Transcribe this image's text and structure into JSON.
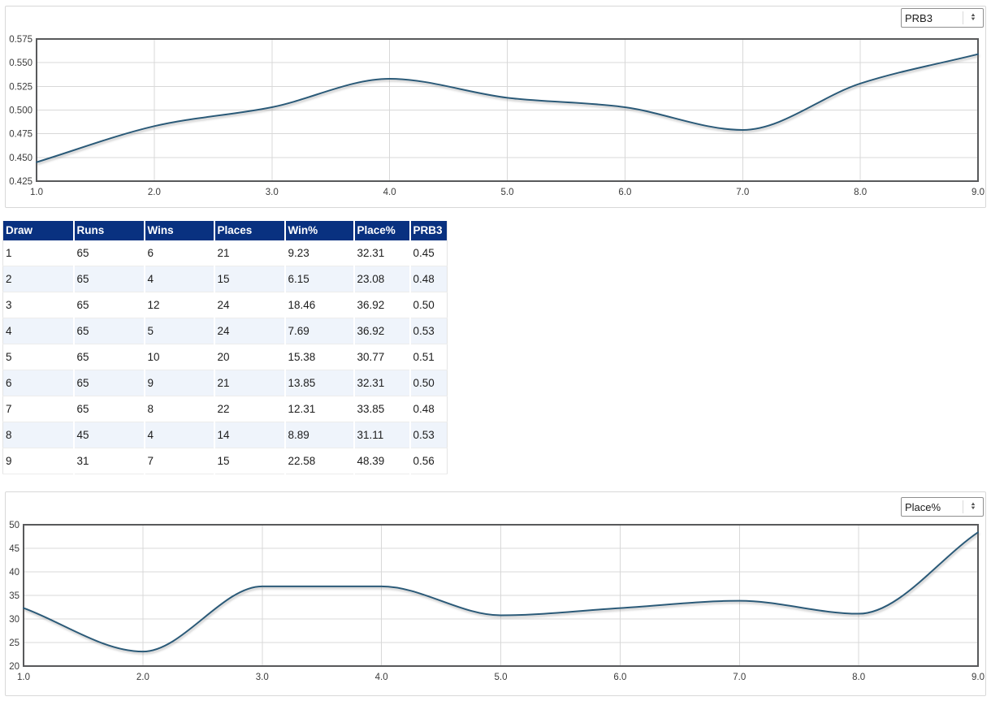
{
  "chart_data": [
    {
      "type": "line",
      "selector_value": "PRB3",
      "x": [
        1,
        2,
        3,
        4,
        5,
        6,
        7,
        8,
        9
      ],
      "series": [
        {
          "name": "PRB3",
          "values": [
            0.445,
            0.483,
            0.503,
            0.533,
            0.513,
            0.503,
            0.479,
            0.528,
            0.559
          ]
        }
      ],
      "title": "",
      "xlabel": "",
      "ylabel": "",
      "xlim": [
        1,
        9
      ],
      "ylim": [
        0.425,
        0.575
      ],
      "x_tick_values": [
        1,
        2,
        3,
        4,
        5,
        6,
        7,
        8,
        9
      ],
      "x_tick_labels": [
        "1.0",
        "2.0",
        "3.0",
        "4.0",
        "5.0",
        "6.0",
        "7.0",
        "8.0",
        "9.0"
      ],
      "y_tick_values": [
        0.425,
        0.45,
        0.475,
        0.5,
        0.525,
        0.55,
        0.575
      ],
      "y_tick_labels": [
        "0.425",
        "0.450",
        "0.475",
        "0.500",
        "0.525",
        "0.550",
        "0.575"
      ],
      "grid": true,
      "legend": "none",
      "line_color": "#2c5a78"
    },
    {
      "type": "line",
      "selector_value": "Place%",
      "x": [
        1,
        2,
        3,
        4,
        5,
        6,
        7,
        8,
        9
      ],
      "series": [
        {
          "name": "Place%",
          "values": [
            32.31,
            23.08,
            36.92,
            36.92,
            30.77,
            32.31,
            33.85,
            31.11,
            48.39
          ]
        }
      ],
      "title": "",
      "xlabel": "",
      "ylabel": "",
      "xlim": [
        1,
        9
      ],
      "ylim": [
        20,
        50
      ],
      "x_tick_values": [
        1,
        2,
        3,
        4,
        5,
        6,
        7,
        8,
        9
      ],
      "x_tick_labels": [
        "1.0",
        "2.0",
        "3.0",
        "4.0",
        "5.0",
        "6.0",
        "7.0",
        "8.0",
        "9.0"
      ],
      "y_tick_values": [
        20,
        25,
        30,
        35,
        40,
        45,
        50
      ],
      "y_tick_labels": [
        "20",
        "25",
        "30",
        "35",
        "40",
        "45",
        "50"
      ],
      "grid": true,
      "legend": "none",
      "line_color": "#2c5a78"
    }
  ],
  "table": {
    "columns": [
      "Draw",
      "Runs",
      "Wins",
      "Places",
      "Win%",
      "Place%",
      "PRB3"
    ],
    "rows": [
      [
        "1",
        "65",
        "6",
        "21",
        "9.23",
        "32.31",
        "0.45"
      ],
      [
        "2",
        "65",
        "4",
        "15",
        "6.15",
        "23.08",
        "0.48"
      ],
      [
        "3",
        "65",
        "12",
        "24",
        "18.46",
        "36.92",
        "0.50"
      ],
      [
        "4",
        "65",
        "5",
        "24",
        "7.69",
        "36.92",
        "0.53"
      ],
      [
        "5",
        "65",
        "10",
        "20",
        "15.38",
        "30.77",
        "0.51"
      ],
      [
        "6",
        "65",
        "9",
        "21",
        "13.85",
        "32.31",
        "0.50"
      ],
      [
        "7",
        "65",
        "8",
        "22",
        "12.31",
        "33.85",
        "0.48"
      ],
      [
        "8",
        "45",
        "4",
        "14",
        "8.89",
        "31.11",
        "0.53"
      ],
      [
        "9",
        "31",
        "7",
        "15",
        "22.58",
        "48.39",
        "0.56"
      ]
    ],
    "header_bg": "#093180",
    "stripe_bg": "#eff4fb"
  },
  "icons": {
    "select_spinner_up": "▲",
    "select_spinner_down": "▼"
  },
  "colors": {
    "line": "#2c5a78",
    "grid": "#d8d8d8",
    "frame": "#58595b",
    "tick_text": "#3b3b3b"
  }
}
